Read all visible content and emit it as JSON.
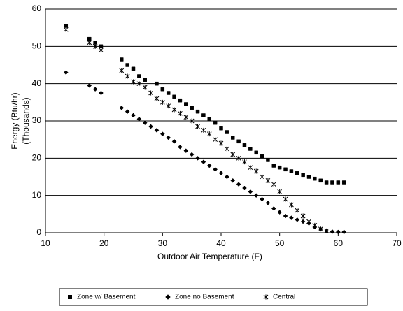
{
  "chart_data": {
    "type": "scatter",
    "xlabel": "Outdoor Air Temperature (F)",
    "ylabel": [
      "Energy (Btu/hr)",
      "(Thousands)"
    ],
    "xlim": [
      10,
      70
    ],
    "xticks": [
      10,
      20,
      30,
      40,
      50,
      60,
      70
    ],
    "ylim": [
      0,
      60
    ],
    "yticks": [
      0,
      10,
      20,
      30,
      40,
      50,
      60
    ],
    "grid": true,
    "legend": "bottom",
    "series": [
      {
        "name": "Zone w/ Basement",
        "marker": "square",
        "color": "#000000",
        "x": [
          13.5,
          17.5,
          18.5,
          19.5,
          23,
          24,
          25,
          26,
          27,
          29,
          30,
          31,
          32,
          33,
          34,
          35,
          36,
          37,
          38,
          39,
          40,
          41,
          42,
          43,
          44,
          45,
          46,
          47,
          48,
          49,
          50,
          51,
          52,
          53,
          54,
          55,
          56,
          57,
          58,
          59,
          60,
          61
        ],
        "values": [
          55.5,
          52,
          51,
          50,
          46.5,
          45,
          44,
          42,
          41,
          40,
          38.5,
          37.5,
          36.5,
          35.5,
          34.5,
          33.5,
          32.5,
          31.5,
          30.5,
          29.5,
          28,
          27,
          25.5,
          24.5,
          23.5,
          22.5,
          21.5,
          20.5,
          19.5,
          18,
          17.5,
          17,
          16.5,
          16,
          15.5,
          15,
          14.5,
          14,
          13.5,
          13.5,
          13.5,
          13.5
        ]
      },
      {
        "name": "Zone no Basement",
        "marker": "diamond",
        "color": "#000000",
        "x": [
          13.5,
          17.5,
          18.5,
          19.5,
          23,
          24,
          25,
          26,
          27,
          28,
          29,
          30,
          31,
          32,
          33,
          34,
          35,
          36,
          37,
          38,
          39,
          40,
          41,
          42,
          43,
          44,
          45,
          46,
          47,
          48,
          49,
          50,
          51,
          52,
          53,
          54,
          55,
          56,
          57,
          58,
          59,
          60,
          61
        ],
        "values": [
          43,
          39.5,
          38.5,
          37.5,
          33.5,
          32.5,
          31.5,
          30.5,
          29.5,
          28.5,
          27.5,
          26.5,
          25.5,
          24.5,
          23,
          22,
          21,
          20,
          19,
          18,
          17,
          16,
          15,
          14,
          13,
          12,
          11,
          10,
          9,
          8,
          6.5,
          5.5,
          4.5,
          4,
          3.5,
          3,
          2.5,
          1.5,
          1,
          0.5,
          0.3,
          0.2,
          0.2
        ]
      },
      {
        "name": "Central",
        "marker": "star",
        "color": "#000000",
        "x": [
          13.5,
          17.5,
          18.5,
          19.5,
          23,
          24,
          25,
          26,
          27,
          28,
          29,
          30,
          31,
          32,
          33,
          34,
          35,
          36,
          37,
          38,
          39,
          40,
          41,
          42,
          43,
          44,
          45,
          46,
          47,
          48,
          49,
          50,
          51,
          52,
          53,
          54,
          55,
          56,
          57,
          58
        ],
        "values": [
          54.5,
          51,
          50,
          49,
          43.5,
          42,
          40.5,
          40,
          39,
          37.5,
          36,
          35,
          34,
          33,
          32,
          31,
          30,
          28.5,
          27.5,
          26.5,
          25,
          24,
          22.5,
          21,
          20,
          19,
          17.5,
          16.5,
          15,
          14,
          13,
          11,
          9,
          7.5,
          6,
          4.5,
          3,
          2,
          1,
          0.5
        ]
      }
    ]
  }
}
